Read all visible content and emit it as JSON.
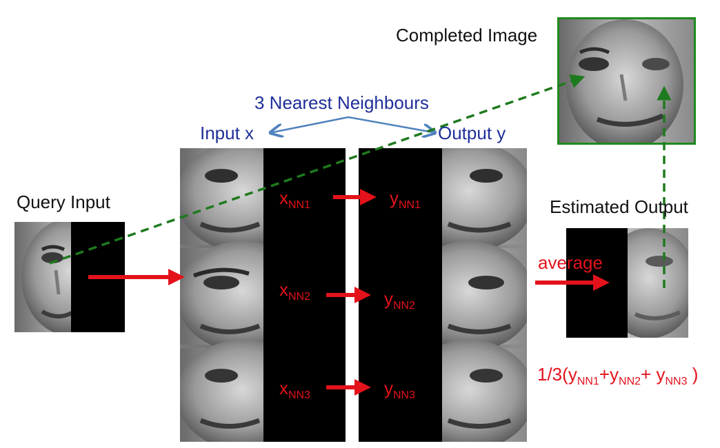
{
  "labels": {
    "completed_image": "Completed Image",
    "nearest_neighbours": "3 Nearest Neighbours",
    "input_x": "Input x",
    "output_y": "Output y",
    "query_input": "Query Input",
    "estimated_output": "Estimated Output",
    "average": "average"
  },
  "neighbours": [
    {
      "x_base": "x",
      "x_sub": "NN1",
      "y_base": "y",
      "y_sub": "NN1"
    },
    {
      "x_base": "x",
      "x_sub": "NN2",
      "y_base": "y",
      "y_sub": "NN2"
    },
    {
      "x_base": "x",
      "x_sub": "NN3",
      "y_base": "y",
      "y_sub": "NN3"
    }
  ],
  "formula": {
    "prefix": "1/3(",
    "t1_base": "y",
    "t1_sub": "NN1",
    "plus1": "+",
    "t2_base": "y",
    "t2_sub": "NN2",
    "plus2": "+ ",
    "t3_base": "y",
    "t3_sub": "NN3",
    "suffix": " )"
  },
  "colors": {
    "accent_red": "#e3121b",
    "label_blue": "#1f2f9a",
    "arrow_blue": "#4f81bd",
    "dashed_green": "#1e7a1e",
    "frame_green": "#1e8a1e"
  }
}
